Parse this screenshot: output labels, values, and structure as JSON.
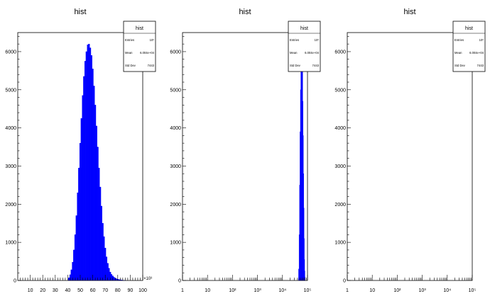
{
  "stats_labels": {
    "entries": "Entries",
    "mean": "Mean",
    "std_dev": "Std Dev"
  },
  "chart_data": [
    {
      "type": "bar",
      "title": "hist",
      "x_scale": "linear",
      "xlim": [
        0,
        100
      ],
      "ylim": [
        0,
        6500
      ],
      "x_ticks": [
        "10",
        "20",
        "30",
        "40",
        "50",
        "60",
        "70",
        "80",
        "90",
        "100"
      ],
      "x_tick_values": [
        10,
        20,
        30,
        40,
        50,
        60,
        70,
        80,
        90,
        100
      ],
      "y_ticks": [
        "0",
        "1000",
        "2000",
        "3000",
        "4000",
        "5000",
        "6000"
      ],
      "y_tick_values": [
        0,
        1000,
        2000,
        3000,
        4000,
        5000,
        6000
      ],
      "x_multiplier": "×10³",
      "stats": {
        "name": "hist",
        "entries": "10⁶",
        "mean": "6.004e+04",
        "std_dev": "7443"
      },
      "bin_centers": [
        41,
        42,
        43,
        44,
        45,
        46,
        47,
        48,
        49,
        50,
        51,
        52,
        53,
        54,
        55,
        56,
        57,
        58,
        59,
        60,
        61,
        62,
        63,
        64,
        65,
        66,
        67,
        68,
        69,
        70,
        71,
        72,
        73,
        74,
        75,
        76,
        77,
        78,
        79,
        80,
        81,
        82,
        83,
        84,
        85,
        86
      ],
      "values": [
        70,
        150,
        280,
        480,
        800,
        1200,
        1700,
        2300,
        2950,
        3600,
        4250,
        4850,
        5350,
        5750,
        6000,
        6180,
        6200,
        6100,
        5900,
        5550,
        5100,
        4600,
        4050,
        3500,
        2950,
        2450,
        1950,
        1500,
        1150,
        850,
        620,
        450,
        320,
        220,
        160,
        120,
        85,
        60,
        45,
        32,
        24,
        18,
        12,
        8,
        5,
        3
      ],
      "bin_width": 1
    },
    {
      "type": "bar",
      "title": "hist",
      "x_scale": "log",
      "xlim": [
        1,
        100000
      ],
      "ylim": [
        0,
        6500
      ],
      "x_ticks": [
        "1",
        "10",
        "10²",
        "10³",
        "10⁴",
        "10⁵"
      ],
      "x_tick_values": [
        1,
        10,
        100,
        1000,
        10000,
        100000
      ],
      "y_ticks": [
        "0",
        "1000",
        "2000",
        "3000",
        "4000",
        "5000",
        "6000"
      ],
      "y_tick_values": [
        0,
        1000,
        2000,
        3000,
        4000,
        5000,
        6000
      ],
      "stats": {
        "name": "hist",
        "entries": "10⁶",
        "mean": "6.004e+04",
        "std_dev": "7443"
      },
      "bin_centers": [
        45000,
        47000,
        49000,
        51000,
        53000,
        55000,
        57000,
        59000,
        61000,
        63000,
        65000,
        67000,
        69000,
        71000,
        73000,
        75000,
        77000,
        79000
      ],
      "values": [
        300,
        1200,
        2500,
        3900,
        5000,
        5700,
        6100,
        6200,
        6000,
        5500,
        4700,
        3800,
        2800,
        1900,
        1100,
        550,
        250,
        90
      ],
      "bin_width": 2000
    },
    {
      "type": "bar",
      "title": "hist",
      "x_scale": "log",
      "xlim": [
        1,
        100000
      ],
      "ylim": [
        0,
        6500
      ],
      "x_ticks": [
        "1",
        "10",
        "10²",
        "10³",
        "10⁴",
        "10⁵"
      ],
      "x_tick_values": [
        1,
        10,
        100,
        1000,
        10000,
        100000
      ],
      "y_ticks": [
        "0",
        "1000",
        "2000",
        "3000",
        "4000",
        "5000",
        "6000"
      ],
      "y_tick_values": [
        0,
        1000,
        2000,
        3000,
        4000,
        5000,
        6000
      ],
      "stats": {
        "name": "hist",
        "entries": "10⁶",
        "mean": "6.004e+04",
        "std_dev": "7443"
      },
      "bin_centers": [],
      "values": [],
      "bin_width": 1
    }
  ]
}
